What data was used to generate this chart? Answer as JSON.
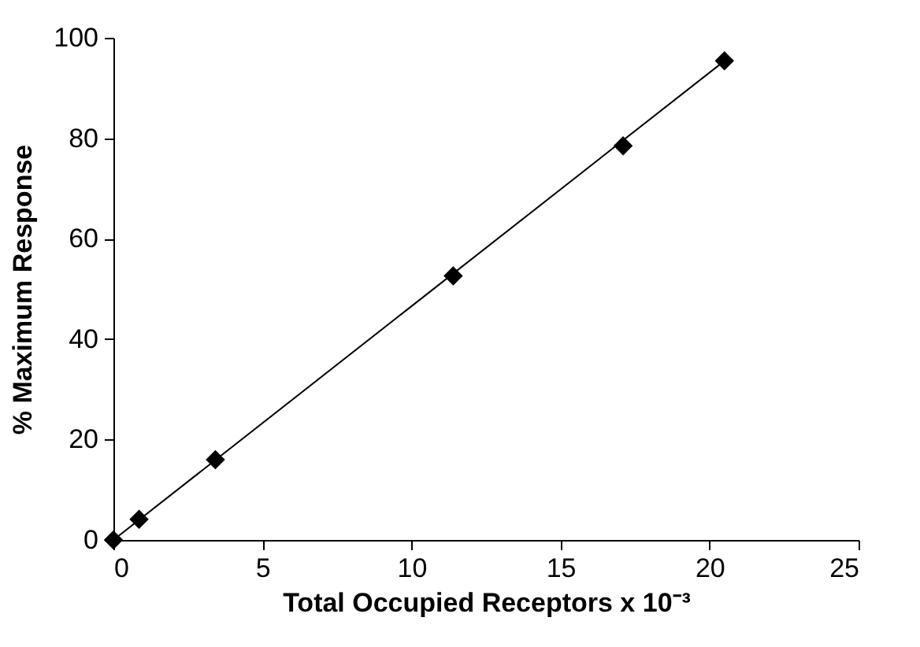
{
  "chart_data": {
    "type": "scatter",
    "xlabel": "Total Occupied Receptors x 10⁻³",
    "ylabel": "% Maximum Response",
    "marker": "diamond",
    "grid": false,
    "xlim": [
      0,
      25
    ],
    "xticks": [
      0,
      5,
      10,
      15,
      20,
      25
    ],
    "ylim": [
      0,
      100
    ],
    "yticks": [
      0,
      20,
      40,
      60,
      80,
      100
    ],
    "series": [
      {
        "color": "#000000",
        "x": [
          0,
          0.86,
          3.42,
          11.4,
          17.1,
          20.5
        ],
        "values": [
          0,
          4.1,
          16.0,
          52.6,
          78.5,
          95.4
        ]
      },
      {
        "type": "line",
        "color": "#000000",
        "x": [
          0,
          20.5
        ],
        "values": [
          0,
          95.4
        ],
        "marker": "none"
      }
    ]
  }
}
